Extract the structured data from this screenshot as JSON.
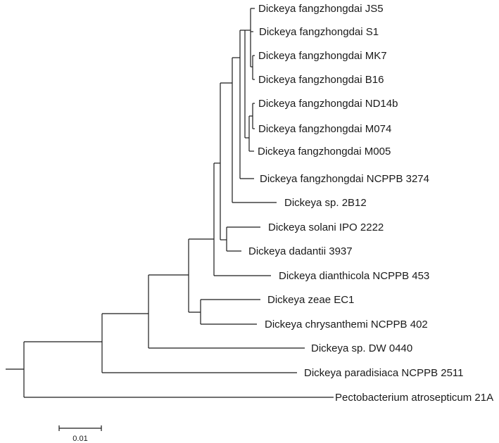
{
  "taxa": [
    "Dickeya fangzhongdai JS5",
    "Dickeya fangzhongdai S1",
    "Dickeya fangzhongdai MK7",
    "Dickeya fangzhongdai B16",
    "Dickeya fangzhongdai ND14b",
    "Dickeya fangzhongdai M074",
    "Dickeya fangzhongdai M005",
    "Dickeya fangzhongdai NCPPB 3274",
    "Dickeya sp. 2B12",
    "Dickeya solani IPO 2222",
    "Dickeya dadantii 3937",
    "Dickeya dianthicola NCPPB 453",
    "Dickeya zeae EC1",
    "Dickeya chrysanthemi NCPPB 402",
    "Dickeya sp. DW 0440",
    "Dickeya paradisiaca NCPPB 2511",
    "Pectobacterium atrosepticum 21A"
  ],
  "scale_bar": {
    "label": "0.01"
  }
}
